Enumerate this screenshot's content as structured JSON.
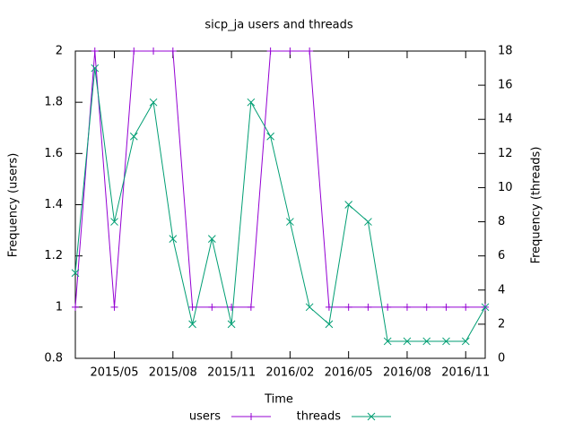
{
  "chart_data": {
    "type": "line",
    "title": "sicp_ja users and threads",
    "x_label": "Time",
    "y_label": "Frequency (users)",
    "y2_label": "Frequency (threads)",
    "x": [
      "2015/03",
      "2015/04",
      "2015/05",
      "2015/06",
      "2015/07",
      "2015/08",
      "2015/09",
      "2015/10",
      "2015/11",
      "2015/12",
      "2016/01",
      "2016/02",
      "2016/03",
      "2016/04",
      "2016/05",
      "2016/06",
      "2016/07",
      "2016/08",
      "2016/09",
      "2016/10",
      "2016/11",
      "2016/12"
    ],
    "xticks": [
      "2015/05",
      "2015/08",
      "2015/11",
      "2016/02",
      "2016/05",
      "2016/08",
      "2016/11"
    ],
    "ylim": [
      0.8,
      2
    ],
    "yticks": [
      0.8,
      1,
      1.2,
      1.4,
      1.6,
      1.8,
      2
    ],
    "y2lim": [
      0,
      18
    ],
    "y2ticks": [
      0,
      2,
      4,
      6,
      8,
      10,
      12,
      14,
      16,
      18
    ],
    "series": [
      {
        "name": "users",
        "color": "#9400d3",
        "marker": "+",
        "values": [
          1,
          2,
          1,
          2,
          2,
          2,
          1,
          1,
          1,
          1,
          2,
          2,
          2,
          1,
          1,
          1,
          1,
          1,
          1,
          1,
          1,
          1
        ]
      },
      {
        "name": "threads",
        "color": "#009e73",
        "marker": "x",
        "axis": "y2",
        "values": [
          5,
          17,
          8,
          13,
          15,
          7,
          2,
          7,
          2,
          15,
          13,
          8,
          3,
          2,
          9,
          8,
          1,
          1,
          1,
          1,
          1,
          3
        ]
      }
    ]
  }
}
